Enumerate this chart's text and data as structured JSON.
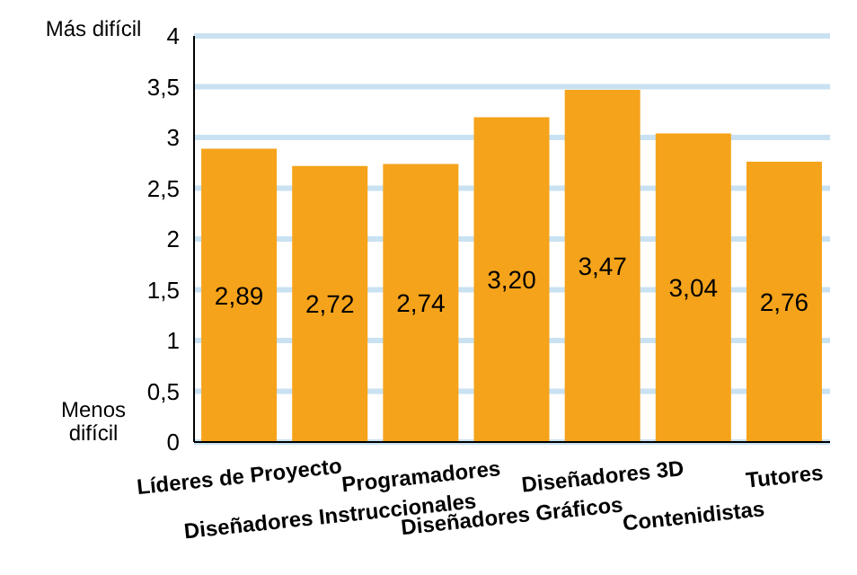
{
  "chart_data": {
    "type": "bar",
    "categories": [
      "Líderes de Proyecto",
      "Diseñadores Instruccionales",
      "Programadores",
      "Diseñadores Gráficos",
      "Diseñadores 3D",
      "Contenidistas",
      "Tutores"
    ],
    "values": [
      2.89,
      2.72,
      2.74,
      3.2,
      3.47,
      3.04,
      2.76
    ],
    "value_labels": [
      "2,89",
      "2,72",
      "2,74",
      "3,20",
      "3,47",
      "3,04",
      "2,76"
    ],
    "color": "#f5a31b",
    "ylim": [
      0,
      4
    ],
    "yticks": [
      0,
      {
        "value": 0.5,
        "label": "0,5"
      },
      1,
      {
        "value": 1.5,
        "label": "1,5"
      },
      2,
      {
        "value": 2.5,
        "label": "2,5"
      },
      3,
      {
        "value": 3.5,
        "label": "3,5"
      },
      4
    ],
    "grid": "y",
    "annotations": [
      "Más difícil",
      "Menos difícil"
    ]
  }
}
